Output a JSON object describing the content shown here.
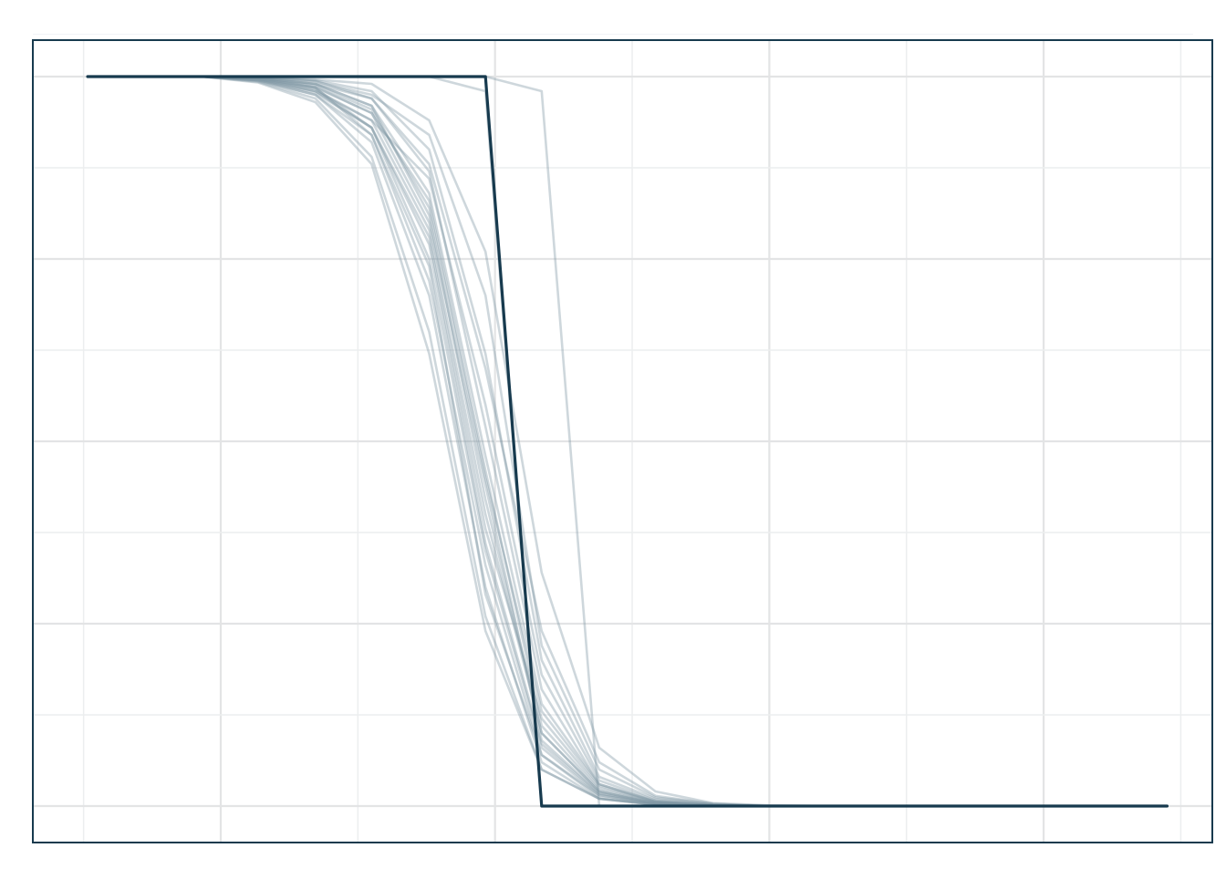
{
  "chart_data": {
    "type": "line",
    "title": "",
    "xlabel": "",
    "ylabel": "",
    "xlim": [
      -0.37,
      8.23
    ],
    "ylim": [
      -0.05,
      1.05
    ],
    "x_gridlines": [
      0,
      1,
      2,
      3,
      4,
      5,
      6,
      7,
      8
    ],
    "y_gridlines": [
      0,
      0.125,
      0.25,
      0.375,
      0.5,
      0.625,
      0.75,
      0.875,
      1
    ],
    "grid": true,
    "legend": "none",
    "colors": {
      "line": "#173a4e",
      "faint_line": "#7d95a3",
      "grid_major": "#e3e4e5",
      "grid_minor": "#eceeef",
      "frame": "#173a4e",
      "background": "#ffffff"
    },
    "series": [
      {
        "x": [
          0.03,
          0.45,
          0.86,
          1.27,
          1.69,
          2.1,
          2.52,
          2.93,
          3.34,
          3.76,
          4.17,
          4.59,
          5.0,
          5.41,
          5.83,
          6.24,
          6.66,
          7.07,
          7.48,
          7.9
        ],
        "y": [
          1,
          1,
          1,
          0.998,
          0.985,
          0.92,
          0.72,
          0.33,
          0.07,
          0.012,
          0.002,
          0,
          0,
          0,
          0,
          0,
          0,
          0,
          0,
          0
        ]
      },
      {
        "x": [
          0.03,
          0.45,
          0.86,
          1.27,
          1.69,
          2.1,
          2.52,
          2.93,
          3.34,
          3.76,
          4.17,
          4.59,
          5.0,
          5.41,
          5.83,
          6.24,
          6.66,
          7.07,
          7.48,
          7.9
        ],
        "y": [
          1,
          1,
          1,
          0.997,
          0.98,
          0.93,
          0.75,
          0.35,
          0.08,
          0.015,
          0.003,
          0,
          0,
          0,
          0,
          0,
          0,
          0,
          0,
          0
        ]
      },
      {
        "x": [
          0.03,
          0.45,
          0.86,
          1.27,
          1.69,
          2.1,
          2.52,
          2.93,
          3.34,
          3.76,
          4.17,
          4.59,
          5.0,
          5.41,
          5.83,
          6.24,
          6.66,
          7.07,
          7.48,
          7.9
        ],
        "y": [
          1,
          1,
          1,
          0.995,
          0.975,
          0.91,
          0.7,
          0.3,
          0.06,
          0.01,
          0.002,
          0,
          0,
          0,
          0,
          0,
          0,
          0,
          0,
          0
        ]
      },
      {
        "x": [
          0.03,
          0.45,
          0.86,
          1.27,
          1.69,
          2.1,
          2.52,
          2.93,
          3.34,
          3.76,
          4.17,
          4.59,
          5.0,
          5.41,
          5.83,
          6.24,
          6.66,
          7.07,
          7.48,
          7.9
        ],
        "y": [
          1,
          1,
          1,
          0.998,
          0.99,
          0.96,
          0.81,
          0.42,
          0.1,
          0.02,
          0.004,
          0,
          0,
          0,
          0,
          0,
          0,
          0,
          0,
          0
        ]
      },
      {
        "x": [
          0.03,
          0.45,
          0.86,
          1.27,
          1.69,
          2.1,
          2.52,
          2.93,
          3.34,
          3.76,
          4.17,
          4.59,
          5.0,
          5.41,
          5.83,
          6.24,
          6.66,
          7.07,
          7.48,
          7.9
        ],
        "y": [
          1,
          1,
          1,
          0.996,
          0.984,
          0.93,
          0.78,
          0.38,
          0.12,
          0.025,
          0.006,
          0.001,
          0,
          0,
          0,
          0,
          0,
          0,
          0,
          0
        ]
      },
      {
        "x": [
          0.03,
          0.45,
          0.86,
          1.27,
          1.69,
          2.1,
          2.52,
          2.93,
          3.34,
          3.76,
          4.17,
          4.59,
          5.0,
          5.41,
          5.83,
          6.24,
          6.66,
          7.07,
          7.48,
          7.9
        ],
        "y": [
          1,
          1,
          1,
          0.993,
          0.97,
          0.89,
          0.65,
          0.26,
          0.05,
          0.01,
          0.002,
          0,
          0,
          0,
          0,
          0,
          0,
          0,
          0,
          0
        ]
      },
      {
        "x": [
          0.03,
          0.45,
          0.86,
          1.27,
          1.69,
          2.1,
          2.52,
          2.93,
          3.34,
          3.76,
          4.17,
          4.59,
          5.0,
          5.41,
          5.83,
          6.24,
          6.66,
          7.07,
          7.48,
          7.9
        ],
        "y": [
          1,
          1,
          1,
          0.998,
          0.99,
          0.97,
          0.87,
          0.52,
          0.16,
          0.03,
          0.006,
          0.001,
          0,
          0,
          0,
          0,
          0,
          0,
          0,
          0
        ]
      },
      {
        "x": [
          0.03,
          0.45,
          0.86,
          1.27,
          1.69,
          2.1,
          2.52,
          2.93,
          3.34,
          3.76,
          4.17,
          4.59,
          5.0,
          5.41,
          5.83,
          6.24,
          6.66,
          7.07,
          7.48,
          7.9
        ],
        "y": [
          1,
          1,
          1,
          0.999,
          0.995,
          0.98,
          0.9,
          0.62,
          0.2,
          0.04,
          0.01,
          0.002,
          0,
          0,
          0,
          0,
          0,
          0,
          0,
          0
        ]
      },
      {
        "x": [
          0.03,
          0.45,
          0.86,
          1.27,
          1.69,
          2.1,
          2.52,
          2.93,
          3.34,
          3.76,
          4.17,
          4.59,
          5.0,
          5.41,
          5.83,
          6.24,
          6.66,
          7.07,
          7.48,
          7.9
        ],
        "y": [
          1,
          1,
          1,
          0.997,
          0.986,
          0.95,
          0.8,
          0.44,
          0.09,
          0.018,
          0.004,
          0.001,
          0,
          0,
          0,
          0,
          0,
          0,
          0,
          0
        ]
      },
      {
        "x": [
          0.03,
          0.45,
          0.86,
          1.27,
          1.69,
          2.1,
          2.52,
          2.93,
          3.34,
          3.76,
          4.17,
          4.59,
          5.0,
          5.41,
          5.83,
          6.24,
          6.66,
          7.07,
          7.48,
          7.9
        ],
        "y": [
          1,
          1,
          1,
          0.994,
          0.975,
          0.92,
          0.74,
          0.29,
          0.07,
          0.015,
          0.003,
          0,
          0,
          0,
          0,
          0,
          0,
          0,
          0,
          0
        ]
      },
      {
        "x": [
          0.03,
          0.45,
          0.86,
          1.27,
          1.69,
          2.1,
          2.52,
          2.93,
          3.34,
          3.76,
          4.17,
          4.59,
          5.0,
          5.41,
          5.83,
          6.24,
          6.66,
          7.07,
          7.48,
          7.9
        ],
        "y": [
          1,
          1,
          1,
          0.999,
          0.996,
          0.99,
          0.94,
          0.76,
          0.32,
          0.08,
          0.02,
          0.004,
          0.001,
          0,
          0,
          0,
          0,
          0,
          0,
          0
        ]
      },
      {
        "x": [
          0.03,
          0.45,
          0.86,
          1.27,
          1.69,
          2.1,
          2.52,
          2.93,
          3.34,
          3.76,
          4.17,
          4.59,
          5.0,
          5.41,
          5.83,
          6.24,
          6.66,
          7.07,
          7.48,
          7.9
        ],
        "y": [
          1,
          1,
          1,
          0.999,
          0.993,
          0.975,
          0.92,
          0.7,
          0.22,
          0.05,
          0.012,
          0.003,
          0,
          0,
          0,
          0,
          0,
          0,
          0,
          0
        ]
      },
      {
        "x": [
          0.03,
          0.45,
          0.86,
          1.27,
          1.69,
          2.1,
          2.52,
          2.93,
          3.34,
          3.76,
          4.17,
          4.59,
          5.0,
          5.41,
          5.83,
          6.24,
          6.66,
          7.07,
          7.48,
          7.9
        ],
        "y": [
          1,
          1,
          1,
          0.995,
          0.98,
          0.94,
          0.86,
          0.55,
          0.18,
          0.035,
          0.008,
          0.002,
          0,
          0,
          0,
          0,
          0,
          0,
          0,
          0
        ]
      },
      {
        "x": [
          0.03,
          0.45,
          0.86,
          1.27,
          1.69,
          2.1,
          2.52,
          2.93,
          3.34,
          3.76,
          4.17,
          4.59,
          5.0,
          5.41,
          5.83,
          6.24,
          6.66,
          7.07,
          7.48,
          7.9
        ],
        "y": [
          1,
          1,
          1,
          0.998,
          0.99,
          0.96,
          0.84,
          0.48,
          0.14,
          0.03,
          0.007,
          0.001,
          0,
          0,
          0,
          0,
          0,
          0,
          0,
          0
        ]
      },
      {
        "x": [
          0.03,
          0.45,
          0.86,
          1.27,
          1.69,
          2.1,
          2.52,
          2.93,
          3.34,
          3.76,
          4.17,
          4.59,
          5.0,
          5.41,
          5.83,
          6.24,
          6.66,
          7.07,
          7.48,
          7.9
        ],
        "y": [
          1,
          1,
          1,
          0.992,
          0.965,
          0.88,
          0.62,
          0.24,
          0.05,
          0.01,
          0.002,
          0,
          0,
          0,
          0,
          0,
          0,
          0,
          0,
          0
        ]
      },
      {
        "x": [
          0.03,
          0.45,
          0.86,
          1.27,
          1.69,
          2.1,
          2.52,
          2.93,
          3.34,
          3.76,
          4.17,
          4.59,
          5.0,
          5.41,
          5.83,
          6.24,
          6.66,
          7.07,
          7.48,
          7.9
        ],
        "y": [
          1,
          1,
          1,
          0.999,
          0.994,
          0.97,
          0.88,
          0.6,
          0.24,
          0.06,
          0.014,
          0.003,
          0,
          0,
          0,
          0,
          0,
          0,
          0,
          0
        ]
      },
      {
        "x": [
          0.03,
          0.45,
          0.86,
          1.27,
          1.69,
          2.1,
          2.52,
          2.93,
          3.34,
          3.76,
          4.17,
          4.59,
          5.0,
          5.41,
          5.83,
          6.24,
          6.66,
          7.07,
          7.48,
          7.9
        ],
        "y": [
          1,
          1,
          1,
          0.997,
          0.985,
          0.95,
          0.83,
          0.46,
          0.11,
          0.022,
          0.005,
          0.001,
          0,
          0,
          0,
          0,
          0,
          0,
          0,
          0
        ]
      },
      {
        "x": [
          0.03,
          0.45,
          0.86,
          1.27,
          1.69,
          2.1,
          2.52,
          2.93,
          3.34,
          3.76,
          4.17,
          4.59,
          5.0,
          5.41,
          5.83,
          6.24,
          6.66,
          7.07,
          7.48,
          7.9
        ],
        "y": [
          1,
          1,
          1,
          0.996,
          0.982,
          0.94,
          0.79,
          0.4,
          0.1,
          0.02,
          0.004,
          0.001,
          0,
          0,
          0,
          0,
          0,
          0,
          0,
          0
        ]
      },
      {
        "x": [
          0.03,
          0.45,
          0.86,
          1.27,
          1.69,
          2.1,
          2.52,
          2.93,
          3.34,
          3.76,
          4.17,
          4.59,
          5.0,
          5.41,
          5.83,
          6.24,
          6.66,
          7.07,
          7.48,
          7.9
        ],
        "y": [
          1,
          1,
          1,
          0.998,
          0.988,
          0.955,
          0.82,
          0.45,
          0.13,
          0.028,
          0.006,
          0.001,
          0,
          0,
          0,
          0,
          0,
          0,
          0,
          0
        ]
      },
      {
        "x": [
          0.03,
          0.45,
          0.86,
          1.27,
          1.69,
          2.1,
          2.52,
          2.93,
          3.34,
          3.76,
          4.17,
          4.59,
          5.0,
          5.41,
          5.83,
          6.24,
          6.66,
          7.07,
          7.48,
          7.9
        ],
        "y": [
          1,
          1,
          1,
          0.995,
          0.978,
          0.93,
          0.77,
          0.36,
          0.085,
          0.017,
          0.003,
          0.001,
          0,
          0,
          0,
          0,
          0,
          0,
          0,
          0
        ]
      },
      {
        "x": [
          0.03,
          0.45,
          0.86,
          1.27,
          1.69,
          2.1,
          2.52,
          2.93,
          3.34,
          3.76,
          4.17,
          4.59,
          5.0,
          5.41,
          5.83,
          6.24,
          6.66,
          7.07,
          7.48,
          7.9
        ],
        "y": [
          1,
          1,
          1,
          1,
          1,
          1,
          1,
          0.98,
          0,
          0,
          0,
          0,
          0,
          0,
          0,
          0,
          0,
          0,
          0,
          0
        ]
      },
      {
        "x": [
          0.03,
          0.45,
          0.86,
          1.27,
          1.69,
          2.1,
          2.52,
          2.93,
          3.34,
          3.76,
          4.17,
          4.59,
          5.0,
          5.41,
          5.83,
          6.24,
          6.66,
          7.07,
          7.48,
          7.9
        ],
        "y": [
          1,
          1,
          1,
          1,
          1,
          1,
          1,
          1,
          0.98,
          0,
          0,
          0,
          0,
          0,
          0,
          0,
          0,
          0,
          0,
          0
        ]
      },
      {
        "x": [
          0.03,
          0.45,
          0.86,
          1.27,
          1.69,
          2.1,
          2.52,
          2.93,
          3.34,
          3.76,
          4.17,
          4.59,
          5.0,
          5.41,
          5.83,
          6.24,
          6.66,
          7.07,
          7.48,
          7.9
        ],
        "y": [
          1,
          1,
          1,
          1,
          1,
          1,
          1,
          1,
          0,
          0,
          0,
          0,
          0,
          0,
          0,
          0,
          0,
          0,
          0,
          0
        ],
        "highlight": true
      }
    ]
  }
}
